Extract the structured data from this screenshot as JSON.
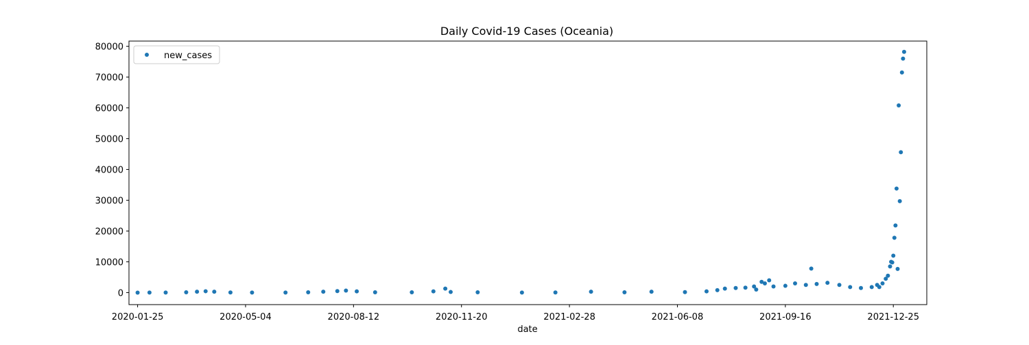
{
  "chart_data": {
    "type": "scatter",
    "title": "Daily Covid-19 Cases (Oceania)",
    "xlabel": "date",
    "ylabel": "",
    "x_is_date": true,
    "xlim": [
      "2020-01-17",
      "2022-01-25"
    ],
    "ylim": [
      -3900,
      81700
    ],
    "x_ticks": [
      "2020-01-25",
      "2020-05-04",
      "2020-08-12",
      "2020-11-20",
      "2021-02-28",
      "2021-06-08",
      "2021-09-16",
      "2021-12-25"
    ],
    "y_ticks": [
      0,
      10000,
      20000,
      30000,
      40000,
      50000,
      60000,
      70000,
      80000
    ],
    "grid": false,
    "legend": {
      "position": "top-left",
      "entries": [
        "new_cases"
      ]
    },
    "series": [
      {
        "name": "new_cases",
        "color": "#1f77b4",
        "points": [
          [
            "2020-01-25",
            0
          ],
          [
            "2020-02-05",
            10
          ],
          [
            "2020-02-20",
            20
          ],
          [
            "2020-03-10",
            100
          ],
          [
            "2020-03-20",
            300
          ],
          [
            "2020-03-28",
            450
          ],
          [
            "2020-04-05",
            300
          ],
          [
            "2020-04-20",
            50
          ],
          [
            "2020-05-10",
            20
          ],
          [
            "2020-06-10",
            15
          ],
          [
            "2020-07-01",
            100
          ],
          [
            "2020-07-15",
            300
          ],
          [
            "2020-07-28",
            500
          ],
          [
            "2020-08-05",
            650
          ],
          [
            "2020-08-15",
            400
          ],
          [
            "2020-09-01",
            100
          ],
          [
            "2020-10-05",
            100
          ],
          [
            "2020-10-25",
            400
          ],
          [
            "2020-11-05",
            1300
          ],
          [
            "2020-11-10",
            200
          ],
          [
            "2020-12-05",
            100
          ],
          [
            "2021-01-15",
            30
          ],
          [
            "2021-02-15",
            50
          ],
          [
            "2021-03-20",
            300
          ],
          [
            "2021-04-20",
            100
          ],
          [
            "2021-05-15",
            300
          ],
          [
            "2021-06-15",
            150
          ],
          [
            "2021-07-05",
            400
          ],
          [
            "2021-07-15",
            800
          ],
          [
            "2021-07-22",
            1300
          ],
          [
            "2021-08-01",
            1500
          ],
          [
            "2021-08-10",
            1600
          ],
          [
            "2021-08-18",
            2000
          ],
          [
            "2021-08-20",
            1000
          ],
          [
            "2021-08-25",
            3500
          ],
          [
            "2021-08-28",
            3000
          ],
          [
            "2021-09-01",
            4000
          ],
          [
            "2021-09-05",
            2000
          ],
          [
            "2021-09-16",
            2200
          ],
          [
            "2021-09-25",
            3000
          ],
          [
            "2021-10-05",
            2500
          ],
          [
            "2021-10-10",
            7800
          ],
          [
            "2021-10-15",
            2800
          ],
          [
            "2021-10-25",
            3200
          ],
          [
            "2021-11-05",
            2500
          ],
          [
            "2021-11-15",
            1800
          ],
          [
            "2021-11-25",
            1500
          ],
          [
            "2021-12-05",
            1800
          ],
          [
            "2021-12-10",
            2500
          ],
          [
            "2021-12-12",
            1800
          ],
          [
            "2021-12-15",
            3000
          ],
          [
            "2021-12-18",
            4500
          ],
          [
            "2021-12-20",
            5500
          ],
          [
            "2021-12-22",
            8500
          ],
          [
            "2021-12-23",
            10000
          ],
          [
            "2021-12-24",
            9800
          ],
          [
            "2021-12-25",
            12000
          ],
          [
            "2021-12-26",
            17800
          ],
          [
            "2021-12-27",
            21800
          ],
          [
            "2021-12-28",
            33800
          ],
          [
            "2021-12-29",
            7700
          ],
          [
            "2021-12-30",
            60800
          ],
          [
            "2021-12-31",
            29700
          ],
          [
            "2022-01-01",
            45600
          ],
          [
            "2022-01-02",
            71500
          ],
          [
            "2022-01-03",
            76000
          ],
          [
            "2022-01-04",
            78200
          ]
        ]
      }
    ]
  }
}
